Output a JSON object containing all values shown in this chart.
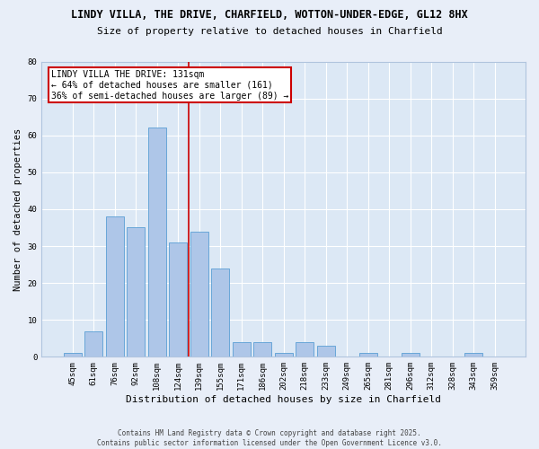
{
  "title_line1": "LINDY VILLA, THE DRIVE, CHARFIELD, WOTTON-UNDER-EDGE, GL12 8HX",
  "title_line2": "Size of property relative to detached houses in Charfield",
  "xlabel": "Distribution of detached houses by size in Charfield",
  "ylabel": "Number of detached properties",
  "categories": [
    "45sqm",
    "61sqm",
    "76sqm",
    "92sqm",
    "108sqm",
    "124sqm",
    "139sqm",
    "155sqm",
    "171sqm",
    "186sqm",
    "202sqm",
    "218sqm",
    "233sqm",
    "249sqm",
    "265sqm",
    "281sqm",
    "296sqm",
    "312sqm",
    "328sqm",
    "343sqm",
    "359sqm"
  ],
  "values": [
    1,
    7,
    38,
    35,
    62,
    31,
    34,
    24,
    4,
    4,
    1,
    4,
    3,
    0,
    1,
    0,
    1,
    0,
    0,
    1,
    0
  ],
  "bar_color": "#aec6e8",
  "bar_edgecolor": "#5a9fd4",
  "redline_x": 5.5,
  "redline_label": "LINDY VILLA THE DRIVE: 131sqm",
  "annotation_line2": "← 64% of detached houses are smaller (161)",
  "annotation_line3": "36% of semi-detached houses are larger (89) →",
  "annotation_box_color": "#ffffff",
  "annotation_box_edgecolor": "#cc0000",
  "redline_color": "#cc0000",
  "ylim": [
    0,
    80
  ],
  "yticks": [
    0,
    10,
    20,
    30,
    40,
    50,
    60,
    70,
    80
  ],
  "fig_background": "#e8eef8",
  "plot_background": "#dce8f5",
  "grid_color": "#ffffff",
  "footer_line1": "Contains HM Land Registry data © Crown copyright and database right 2025.",
  "footer_line2": "Contains public sector information licensed under the Open Government Licence v3.0.",
  "title1_fontsize": 8.5,
  "title2_fontsize": 8.0,
  "ylabel_fontsize": 7.5,
  "xlabel_fontsize": 8.0,
  "tick_fontsize": 6.5,
  "annotation_fontsize": 7.0,
  "footer_fontsize": 5.5
}
